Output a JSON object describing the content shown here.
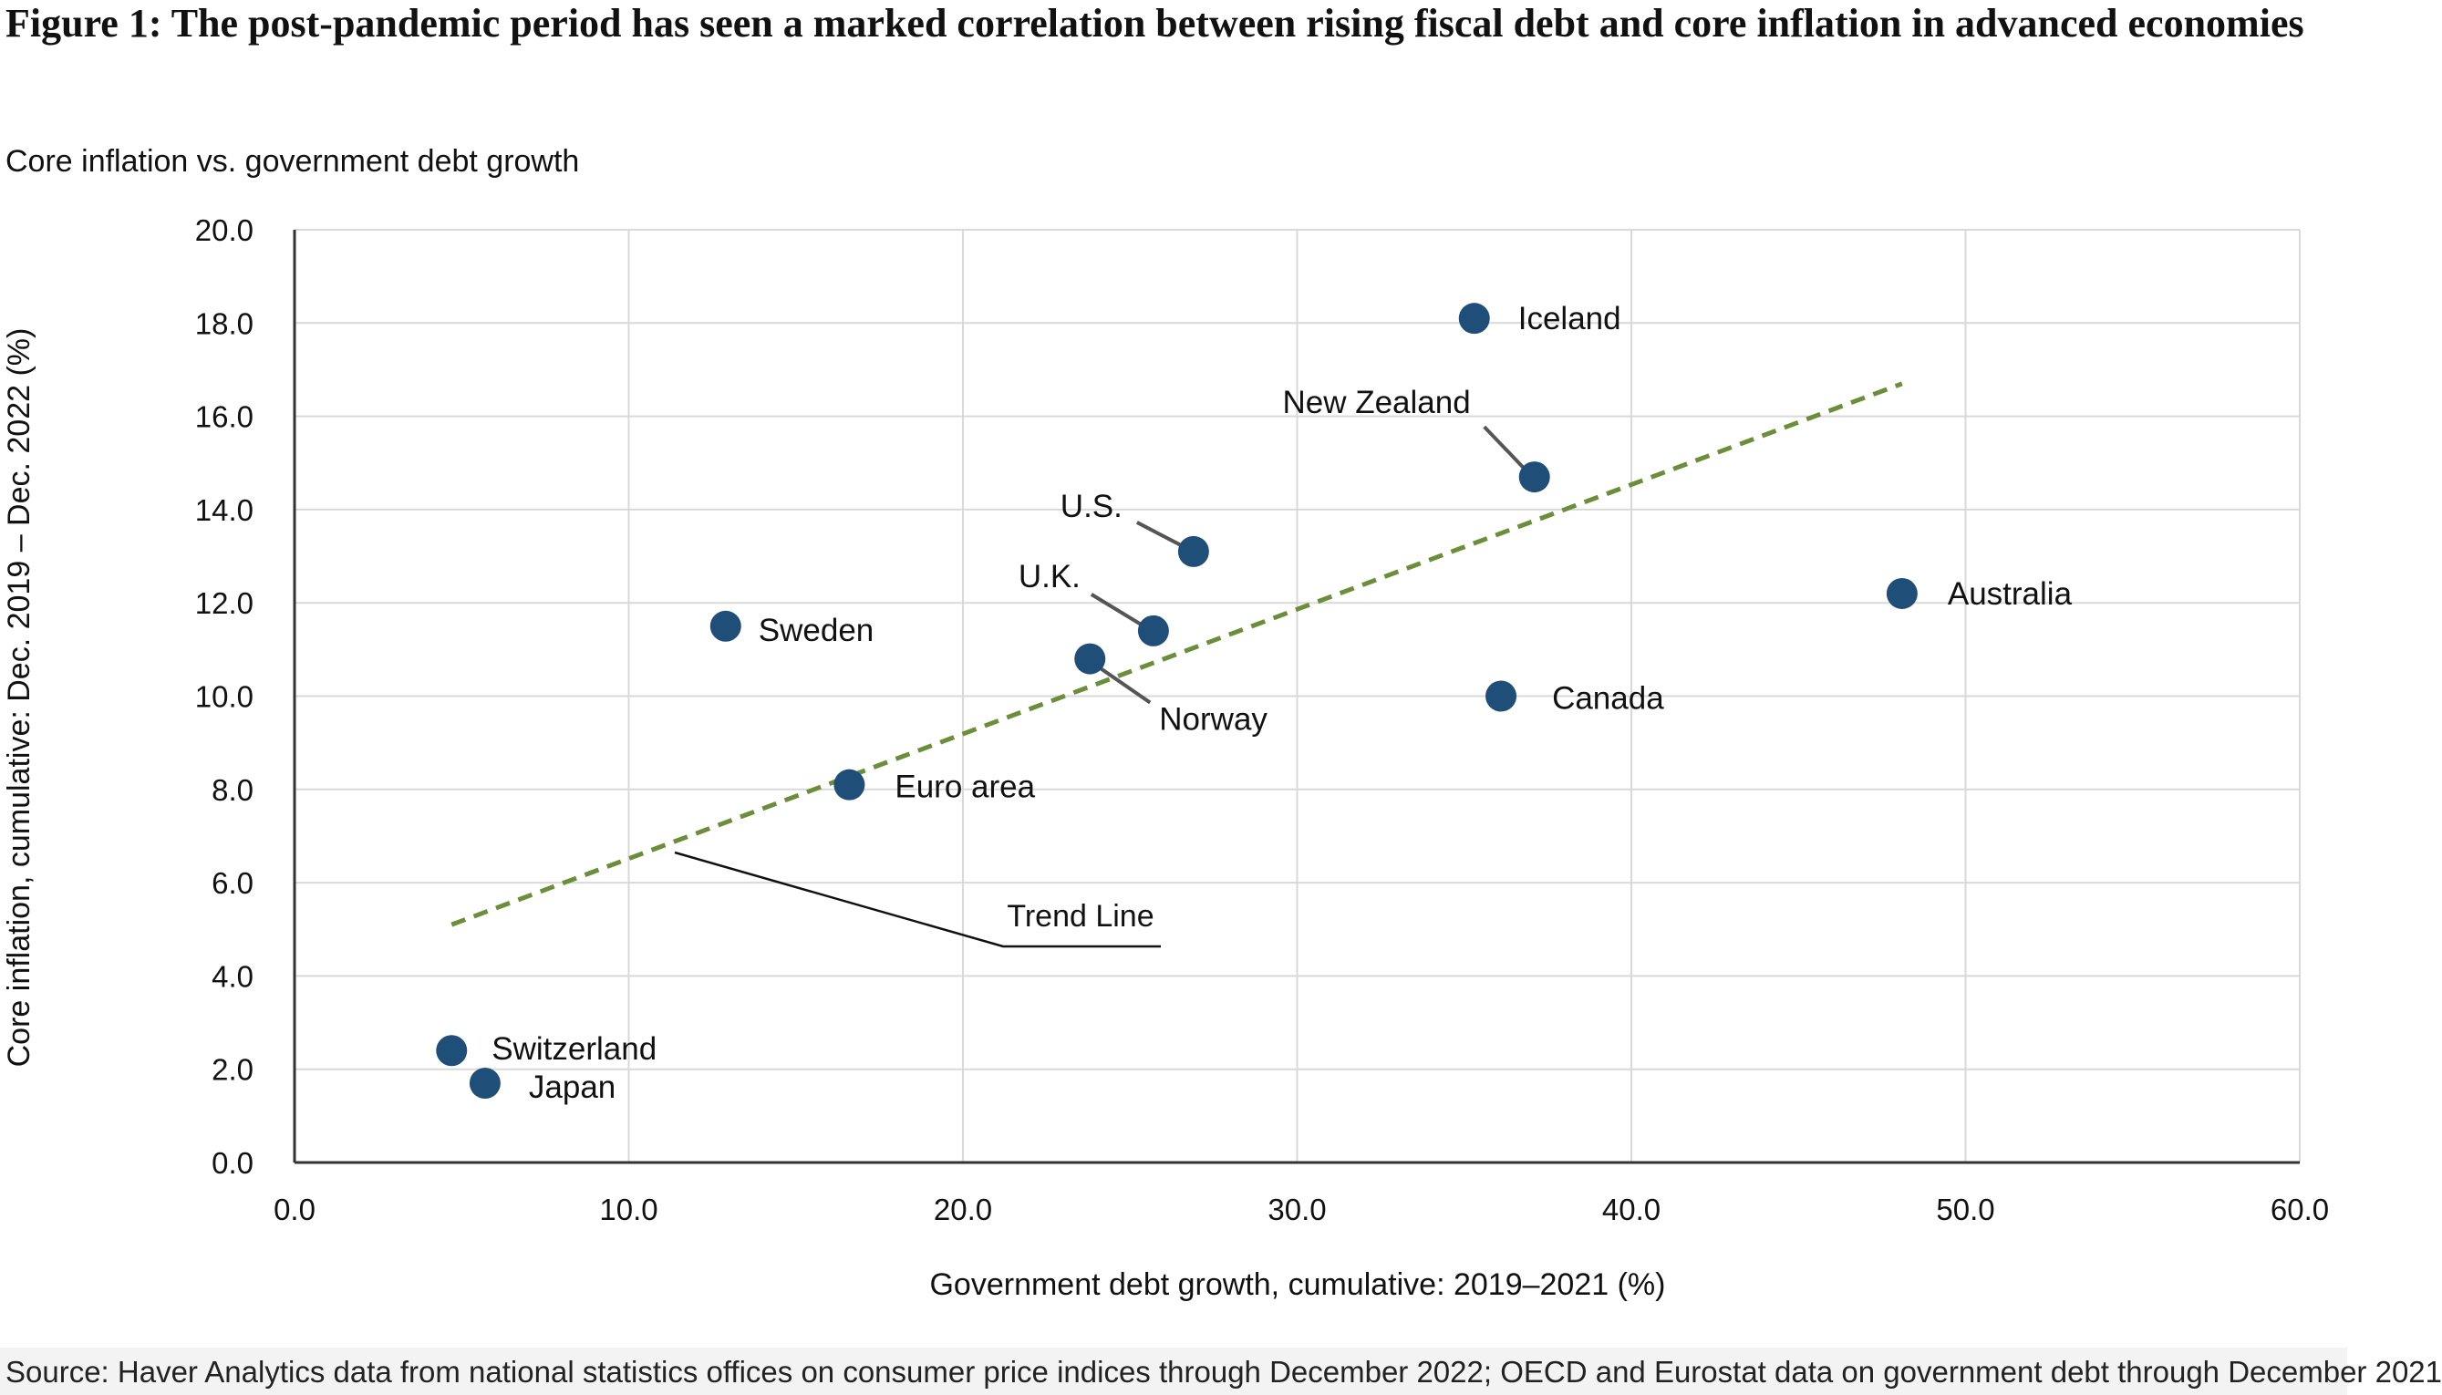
{
  "figure_title": "Figure 1: The post-pandemic period has seen a marked correlation between rising fiscal debt and core inflation in advanced economies",
  "subtitle": "Core inflation vs. government debt growth",
  "source": "Source: Haver Analytics data from national statistics offices on consumer price indices through December 2022; OECD and Eurostat data on government debt through December 2021",
  "colors": {
    "point": "#1f4e79",
    "trend": "#6b8e3a",
    "grid": "#d9d9d9",
    "axis": "#333333"
  },
  "chart_data": {
    "type": "scatter",
    "title": "Core inflation vs. government debt growth",
    "xlabel": "Government debt growth, cumulative: 2019–2021 (%)",
    "ylabel": "Core inflation, cumulative: Dec. 2019 – Dec. 2022 (%)",
    "xlim": [
      0,
      60
    ],
    "ylim": [
      0,
      20
    ],
    "x_ticks": [
      "0.0",
      "10.0",
      "20.0",
      "30.0",
      "40.0",
      "50.0",
      "60.0"
    ],
    "y_ticks": [
      "0.0",
      "2.0",
      "4.0",
      "6.0",
      "8.0",
      "10.0",
      "12.0",
      "14.0",
      "16.0",
      "18.0",
      "20.0"
    ],
    "grid": true,
    "points": [
      {
        "label": "Iceland",
        "x": 35.3,
        "y": 18.1
      },
      {
        "label": "New Zealand",
        "x": 37.1,
        "y": 14.7
      },
      {
        "label": "U.S.",
        "x": 26.9,
        "y": 13.1
      },
      {
        "label": "U.K.",
        "x": 25.7,
        "y": 11.4
      },
      {
        "label": "Norway",
        "x": 23.8,
        "y": 10.8
      },
      {
        "label": "Australia",
        "x": 48.1,
        "y": 12.2
      },
      {
        "label": "Sweden",
        "x": 12.9,
        "y": 11.5
      },
      {
        "label": "Canada",
        "x": 36.1,
        "y": 10.0
      },
      {
        "label": "Euro area",
        "x": 16.6,
        "y": 8.1
      },
      {
        "label": "Switzerland",
        "x": 4.7,
        "y": 2.4
      },
      {
        "label": "Japan",
        "x": 5.7,
        "y": 1.7
      }
    ],
    "trend_line": {
      "label": "Trend Line",
      "x": [
        4.7,
        48.1
      ],
      "y": [
        5.1,
        16.7
      ]
    }
  }
}
